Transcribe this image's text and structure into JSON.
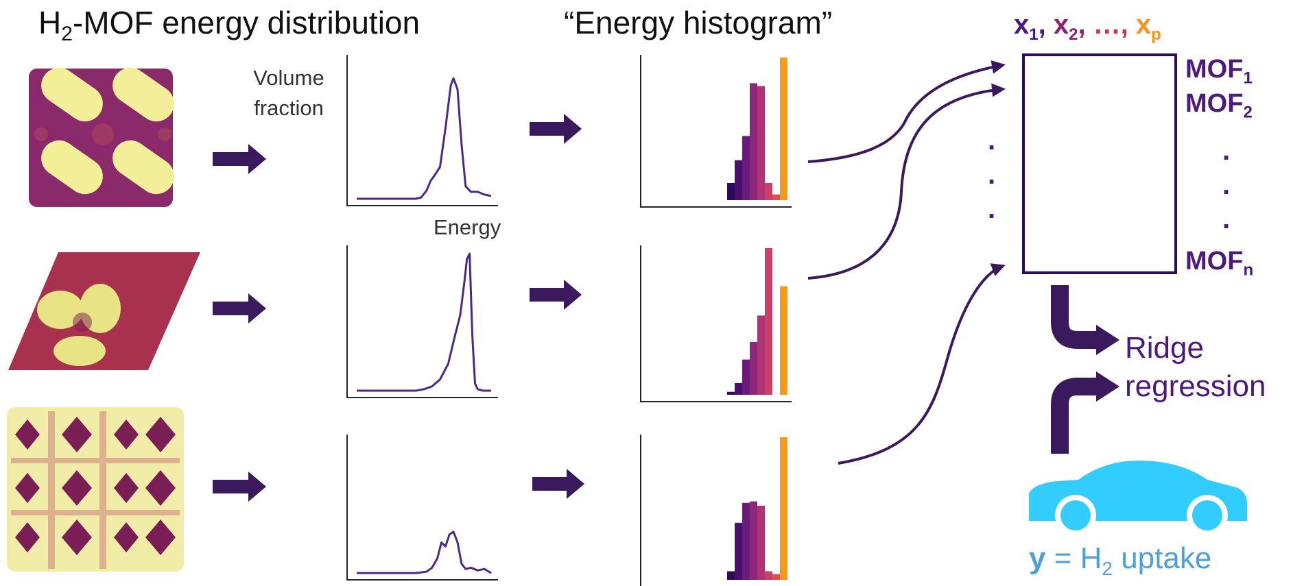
{
  "headings": {
    "left": {
      "pre": "H",
      "sub": "2",
      "post": "-MOF energy distribution"
    },
    "middle": "“Energy histogram”"
  },
  "axis_labels": {
    "y_line1": "Volume",
    "y_line2": "fraction",
    "x": "Energy"
  },
  "feature_header": {
    "x": "x",
    "sep": ", ",
    "ellipsis": "…, ",
    "sub_1": "1",
    "sub_2": "2",
    "sub_p": "p"
  },
  "row_labels": [
    {
      "name": "MOF",
      "sub": "1"
    },
    {
      "name": "MOF",
      "sub": "2"
    },
    {
      "name": "MOF",
      "sub": "n"
    }
  ],
  "dots": ".",
  "model": {
    "line1": "Ridge",
    "line2": "regression"
  },
  "car": {
    "pre": "H",
    "sub": "2"
  },
  "target": {
    "y": "y",
    "eq": " = H",
    "sub": "2",
    "post": " uptake"
  },
  "colors": {
    "arrow": "#3a1a5c",
    "curve": "#4b2a86",
    "text_purple": "#4b1a7a",
    "car": "#33ccff",
    "target_text": "#4f9fd8",
    "palette": [
      "#2d0a5a",
      "#4a1070",
      "#6a1c78",
      "#8c2779",
      "#ae3475",
      "#cc3f66",
      "#e04e4e",
      "#f79a1a"
    ],
    "x1": "#4b1a7a",
    "x2": "#8a2277",
    "ellipsis": "#c8334f",
    "xp": "#f7941d"
  },
  "chart_data": {
    "type": "bar",
    "description_of_rows": "three MOF energy histograms",
    "histograms": [
      {
        "values": [
          0.12,
          0.28,
          0.45,
          0.82,
          0.8,
          0.12,
          0.04,
          1.0
        ]
      },
      {
        "values": [
          0.02,
          0.08,
          0.24,
          0.36,
          0.54,
          1.0,
          0.0,
          0.74
        ]
      },
      {
        "values": [
          0.06,
          0.4,
          0.54,
          0.55,
          0.52,
          0.06,
          0.04,
          1.0
        ]
      }
    ],
    "distributions": [
      {
        "x": [
          0,
          0.44,
          0.48,
          0.52,
          0.55,
          0.58,
          0.62,
          0.66,
          0.7,
          0.72,
          0.75,
          0.78,
          0.81,
          0.85,
          0.9,
          0.95,
          1.0
        ],
        "y": [
          0.01,
          0.01,
          0.02,
          0.07,
          0.14,
          0.18,
          0.24,
          0.52,
          0.83,
          0.88,
          0.8,
          0.4,
          0.1,
          0.06,
          0.06,
          0.04,
          0.03
        ]
      },
      {
        "x": [
          0,
          0.44,
          0.5,
          0.56,
          0.62,
          0.68,
          0.73,
          0.77,
          0.8,
          0.82,
          0.84,
          0.86,
          0.88,
          0.9,
          0.94,
          1.0
        ],
        "y": [
          0.01,
          0.01,
          0.02,
          0.04,
          0.09,
          0.2,
          0.4,
          0.55,
          0.78,
          0.95,
          0.99,
          0.4,
          0.06,
          0.02,
          0.01,
          0.01
        ]
      },
      {
        "x": [
          0,
          0.44,
          0.52,
          0.56,
          0.6,
          0.63,
          0.66,
          0.69,
          0.72,
          0.75,
          0.78,
          0.81,
          0.85,
          0.9,
          0.95,
          1.0
        ],
        "y": [
          0.01,
          0.01,
          0.02,
          0.05,
          0.12,
          0.24,
          0.21,
          0.3,
          0.32,
          0.24,
          0.08,
          0.04,
          0.05,
          0.03,
          0.04,
          0.01
        ]
      }
    ]
  }
}
